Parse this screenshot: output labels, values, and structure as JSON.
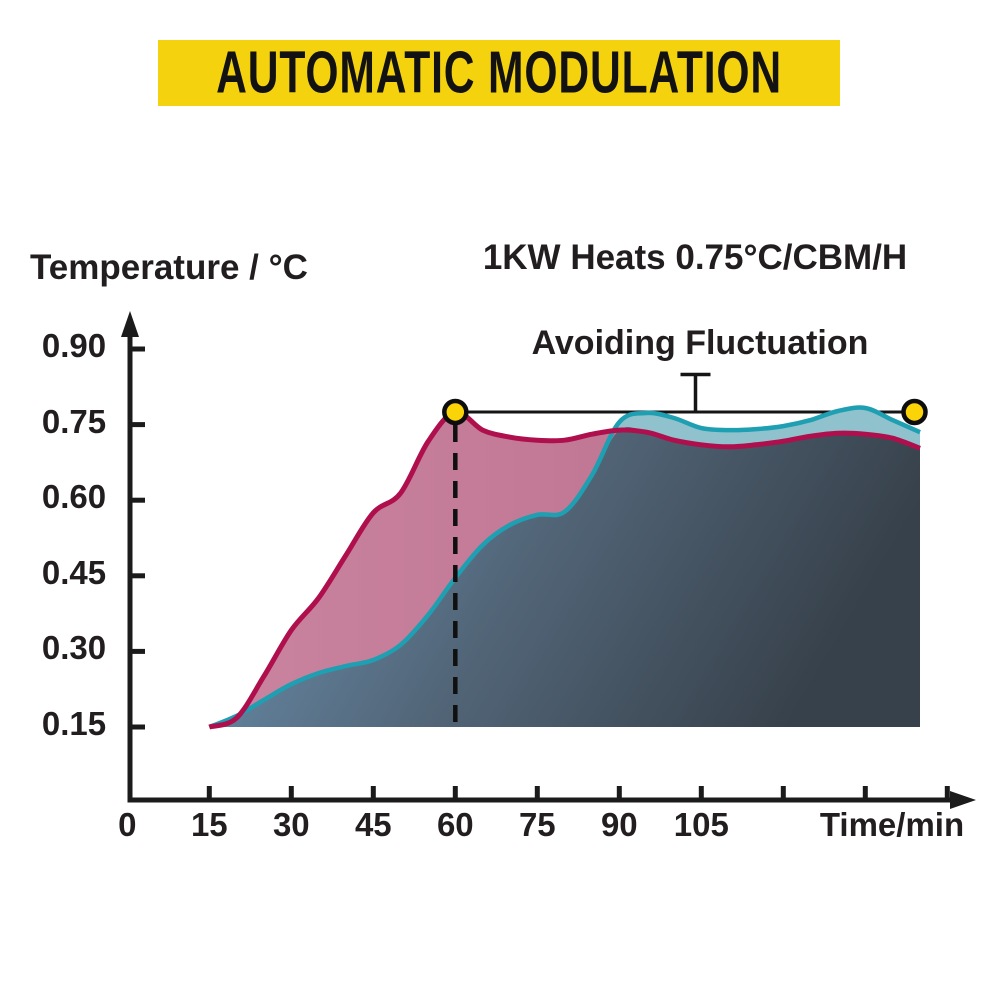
{
  "banner": {
    "title": "AUTOMATIC MODULATION",
    "bg_color": "#F5D20E",
    "text_color": "#121212"
  },
  "chart_data": {
    "type": "area",
    "title": "1KW Heats 0.75°C/CBM/H",
    "annotation": "Avoiding Fluctuation",
    "ylabel": "Temperature / °C",
    "xlabel": "Time/min",
    "y_tick_labels": [
      "0.90",
      "0.75",
      "0.60",
      "0.45",
      "0.30",
      "0.15"
    ],
    "y_tick_values": [
      0.9,
      0.75,
      0.6,
      0.45,
      0.3,
      0.15
    ],
    "x_tick_labels": [
      "0",
      "15",
      "30",
      "45",
      "60",
      "75",
      "90",
      "105"
    ],
    "x_tick_values": [
      0,
      15,
      30,
      45,
      60,
      75,
      90,
      105
    ],
    "x_unlabeled_tick_values": [
      120,
      135,
      150
    ],
    "xlim": [
      0,
      155
    ],
    "ylim": [
      0,
      0.95
    ],
    "grid": false,
    "legend": "none",
    "x": [
      15,
      20,
      25,
      30,
      35,
      40,
      45,
      50,
      55,
      60,
      65,
      70,
      75,
      80,
      85,
      90,
      95,
      100,
      105,
      110,
      115,
      120,
      125,
      130,
      135,
      140,
      145
    ],
    "series": [
      {
        "name": "rapid-heating-curve",
        "stroke": "#AF0F4D",
        "fill_gradient": [
          "#CA84A0",
          "#B96E8A"
        ],
        "values": [
          0.15,
          0.168,
          0.251,
          0.342,
          0.406,
          0.491,
          0.575,
          0.614,
          0.716,
          0.775,
          0.739,
          0.725,
          0.719,
          0.719,
          0.731,
          0.739,
          0.735,
          0.719,
          0.71,
          0.706,
          0.71,
          0.717,
          0.727,
          0.733,
          0.731,
          0.723,
          0.703
        ]
      },
      {
        "name": "modulated-heating-curve",
        "stroke": "#1E9FB2",
        "fill": "#8FC2CC",
        "values": [
          0.15,
          0.172,
          0.204,
          0.235,
          0.257,
          0.271,
          0.283,
          0.313,
          0.372,
          0.446,
          0.511,
          0.551,
          0.571,
          0.577,
          0.65,
          0.755,
          0.773,
          0.763,
          0.743,
          0.739,
          0.741,
          0.747,
          0.759,
          0.777,
          0.783,
          0.759,
          0.735
        ]
      }
    ],
    "area_gradient": [
      "#6E97B8",
      "#53677A",
      "#37414B"
    ],
    "markers": {
      "times": [
        60,
        144
      ],
      "value": 0.775,
      "fill": "#FBD408",
      "stroke": "#0D0D0D"
    },
    "reference_line_value": 0.775,
    "dashed_guide_time": 60,
    "axis_color": "#1B1B1B"
  }
}
